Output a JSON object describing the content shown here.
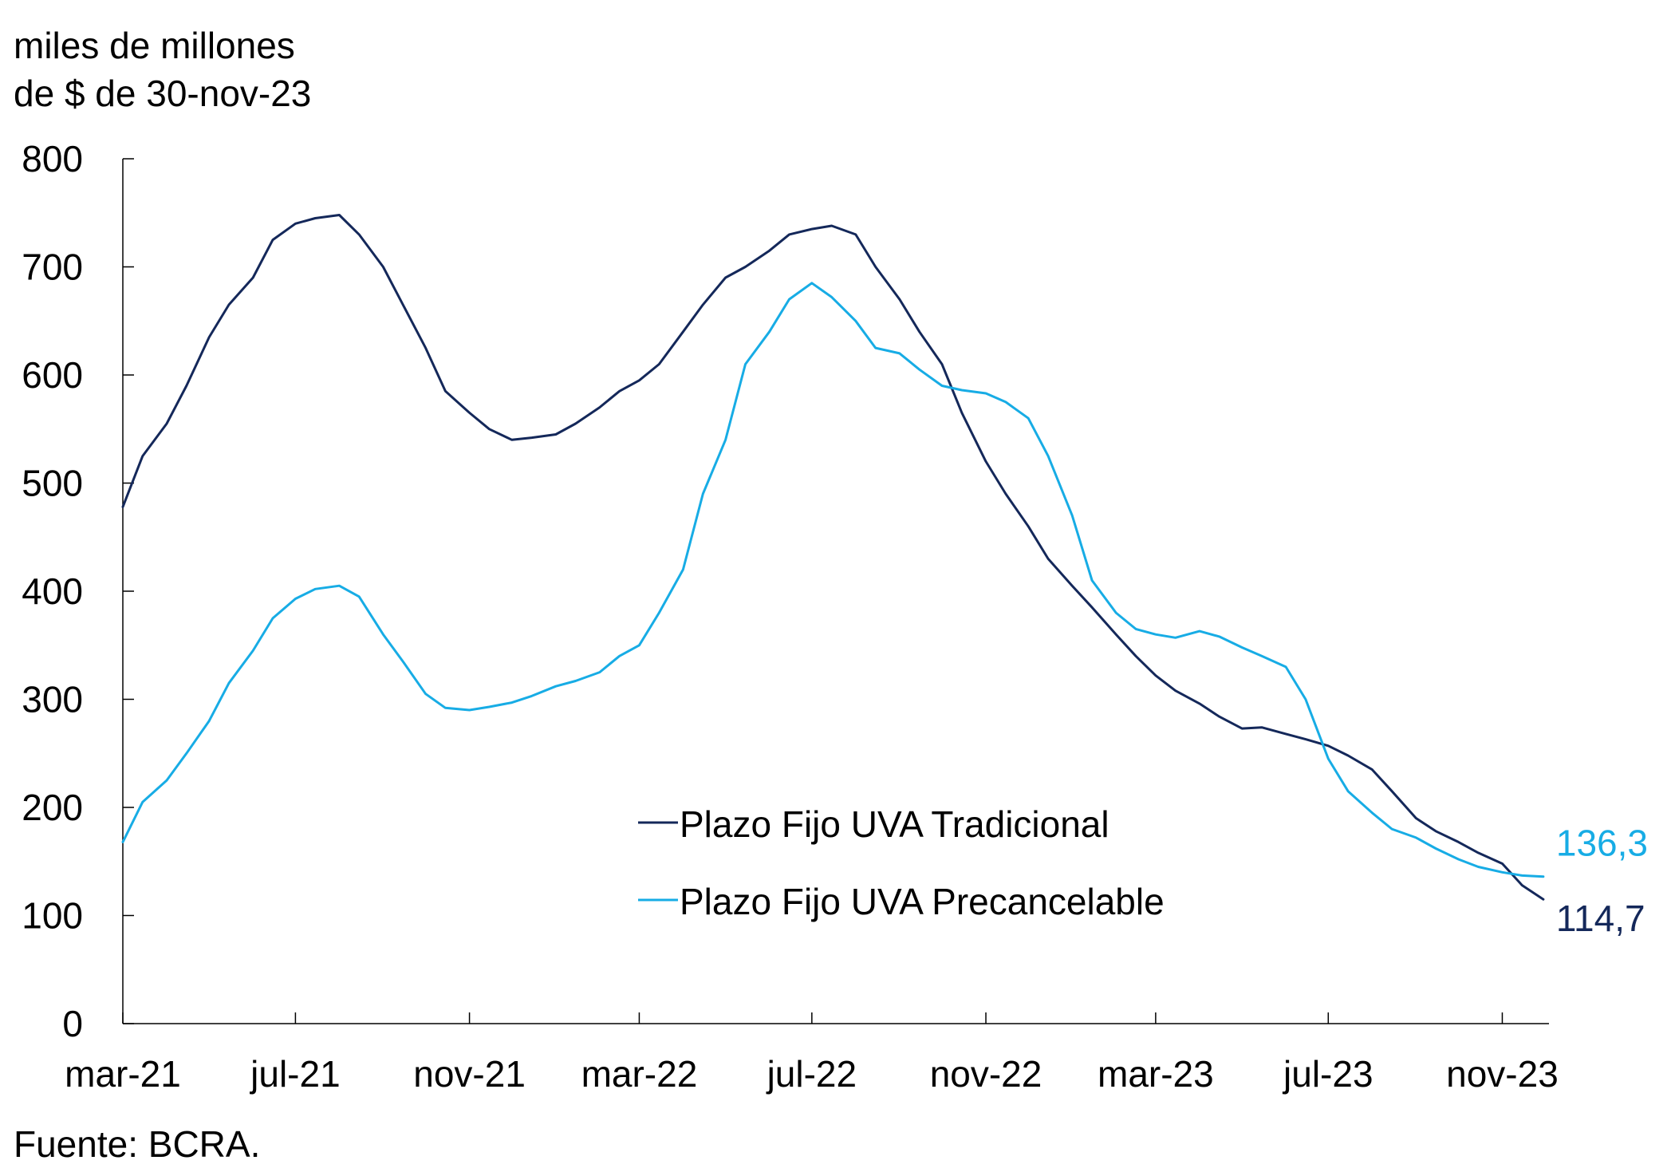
{
  "chart_data": {
    "type": "line",
    "ylabel": [
      "miles de millones",
      "de $ de 30-nov-23"
    ],
    "xlabel": "",
    "ylim": [
      0,
      800
    ],
    "yticks": [
      0,
      100,
      200,
      300,
      400,
      500,
      600,
      700,
      800
    ],
    "xlim": [
      "2021-03-01",
      "2023-12-04"
    ],
    "xticks": [
      {
        "label": "mar-21",
        "date": "2021-03-01"
      },
      {
        "label": "jul-21",
        "date": "2021-07-01"
      },
      {
        "label": "nov-21",
        "date": "2021-11-01"
      },
      {
        "label": "mar-22",
        "date": "2022-03-01"
      },
      {
        "label": "jul-22",
        "date": "2022-07-01"
      },
      {
        "label": "nov-22",
        "date": "2022-11-01"
      },
      {
        "label": "mar-23",
        "date": "2023-03-01"
      },
      {
        "label": "jul-23",
        "date": "2023-07-01"
      },
      {
        "label": "nov-23",
        "date": "2023-11-01"
      }
    ],
    "grid": false,
    "legend_position": "bottom-center",
    "source": "Fuente: BCRA.",
    "series": [
      {
        "name": "Plazo Fijo UVA Tradicional",
        "color": "#14285a",
        "end_label": "114,7",
        "x": [
          "2021-03-01",
          "2021-03-15",
          "2021-04-01",
          "2021-04-15",
          "2021-05-01",
          "2021-05-15",
          "2021-06-01",
          "2021-06-15",
          "2021-07-01",
          "2021-07-15",
          "2021-08-01",
          "2021-08-15",
          "2021-09-01",
          "2021-09-15",
          "2021-10-01",
          "2021-10-15",
          "2021-11-01",
          "2021-11-15",
          "2021-12-01",
          "2021-12-15",
          "2022-01-01",
          "2022-01-15",
          "2022-02-01",
          "2022-02-15",
          "2022-03-01",
          "2022-03-15",
          "2022-04-01",
          "2022-04-15",
          "2022-05-01",
          "2022-05-15",
          "2022-06-01",
          "2022-06-15",
          "2022-07-01",
          "2022-07-15",
          "2022-08-01",
          "2022-08-15",
          "2022-09-01",
          "2022-09-15",
          "2022-10-01",
          "2022-10-15",
          "2022-11-01",
          "2022-11-15",
          "2022-12-01",
          "2022-12-15",
          "2023-01-01",
          "2023-01-15",
          "2023-02-01",
          "2023-02-15",
          "2023-03-01",
          "2023-03-15",
          "2023-04-01",
          "2023-04-15",
          "2023-05-01",
          "2023-05-15",
          "2023-06-01",
          "2023-06-15",
          "2023-07-01",
          "2023-07-15",
          "2023-08-01",
          "2023-08-15",
          "2023-09-01",
          "2023-09-15",
          "2023-10-01",
          "2023-10-15",
          "2023-11-01",
          "2023-11-15",
          "2023-11-30"
        ],
        "values": [
          478,
          525,
          555,
          590,
          635,
          665,
          690,
          725,
          740,
          745,
          748,
          730,
          700,
          665,
          625,
          585,
          565,
          550,
          540,
          542,
          545,
          555,
          570,
          585,
          595,
          610,
          640,
          665,
          690,
          700,
          715,
          730,
          735,
          738,
          730,
          700,
          670,
          640,
          610,
          565,
          520,
          490,
          460,
          430,
          405,
          385,
          360,
          340,
          322,
          308,
          296,
          284,
          273,
          274,
          268,
          263,
          257,
          248,
          235,
          215,
          190,
          178,
          168,
          158,
          148,
          128,
          115
        ]
      },
      {
        "name": "Plazo Fijo UVA Precancelable",
        "color": "#17ace5",
        "end_label": "136,3",
        "x": [
          "2021-03-01",
          "2021-03-15",
          "2021-04-01",
          "2021-04-15",
          "2021-05-01",
          "2021-05-15",
          "2021-06-01",
          "2021-06-15",
          "2021-07-01",
          "2021-07-15",
          "2021-08-01",
          "2021-08-15",
          "2021-09-01",
          "2021-09-15",
          "2021-10-01",
          "2021-10-15",
          "2021-11-01",
          "2021-11-15",
          "2021-12-01",
          "2021-12-15",
          "2022-01-01",
          "2022-01-15",
          "2022-02-01",
          "2022-02-15",
          "2022-03-01",
          "2022-03-15",
          "2022-04-01",
          "2022-04-15",
          "2022-05-01",
          "2022-05-15",
          "2022-06-01",
          "2022-06-15",
          "2022-07-01",
          "2022-07-15",
          "2022-08-01",
          "2022-08-15",
          "2022-09-01",
          "2022-09-15",
          "2022-10-01",
          "2022-10-15",
          "2022-11-01",
          "2022-11-15",
          "2022-12-01",
          "2022-12-15",
          "2023-01-01",
          "2023-01-15",
          "2023-02-01",
          "2023-02-15",
          "2023-03-01",
          "2023-03-15",
          "2023-04-01",
          "2023-04-15",
          "2023-05-01",
          "2023-05-15",
          "2023-06-01",
          "2023-06-15",
          "2023-07-01",
          "2023-07-15",
          "2023-08-01",
          "2023-08-15",
          "2023-09-01",
          "2023-09-15",
          "2023-10-01",
          "2023-10-15",
          "2023-11-01",
          "2023-11-15",
          "2023-11-30"
        ],
        "values": [
          168,
          205,
          225,
          250,
          280,
          315,
          345,
          375,
          393,
          402,
          405,
          395,
          360,
          335,
          305,
          292,
          290,
          293,
          297,
          303,
          312,
          317,
          325,
          340,
          350,
          380,
          420,
          490,
          540,
          610,
          640,
          670,
          685,
          672,
          650,
          625,
          620,
          605,
          590,
          586,
          583,
          575,
          560,
          525,
          470,
          410,
          380,
          365,
          360,
          357,
          363,
          358,
          348,
          340,
          330,
          300,
          245,
          215,
          195,
          180,
          172,
          162,
          152,
          145,
          140,
          137,
          136
        ]
      }
    ]
  }
}
